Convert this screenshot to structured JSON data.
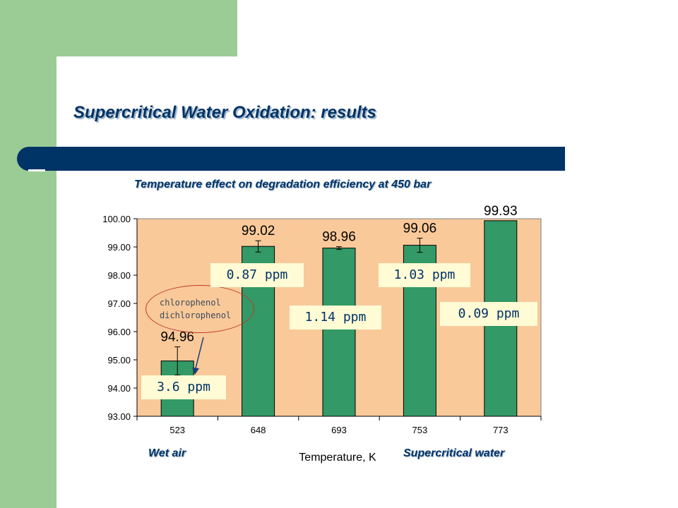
{
  "slide": {
    "title": "Supercritical Water Oxidation: results"
  },
  "colors": {
    "bar": "#339966",
    "plot_bg": "#f9c99a",
    "accent_blue": "#003366",
    "side_green": "#9ccc96"
  },
  "chart_data": {
    "type": "bar",
    "title": "Temperature effect on degradation efficiency at 450 bar",
    "xlabel": "Temperature, K",
    "ylabel": "",
    "categories": [
      "523",
      "648",
      "693",
      "753",
      "773"
    ],
    "values": [
      94.96,
      99.02,
      98.96,
      99.06,
      99.93
    ],
    "value_labels": [
      "94.96",
      "99.02",
      "98.96",
      "99.06",
      "99.93"
    ],
    "error_bars": [
      0.5,
      0.2,
      0.05,
      0.25,
      0
    ],
    "ylim": [
      93,
      100
    ],
    "y_ticks": [
      "93.00",
      "94.00",
      "95.00",
      "96.00",
      "97.00",
      "98.00",
      "99.00",
      "100.00"
    ],
    "y_tick_values": [
      93,
      94,
      95,
      96,
      97,
      98,
      99,
      100
    ],
    "grid": false
  },
  "annotations": {
    "ppm": [
      "3.6 ppm",
      "0.87 ppm",
      "1.14 ppm",
      "1.03 ppm",
      "0.09 ppm"
    ],
    "compounds": [
      "chlorophenol",
      "dichlorophenol"
    ],
    "groups": {
      "wet_air": "Wet air",
      "supercritical": "Supercritical water"
    }
  }
}
